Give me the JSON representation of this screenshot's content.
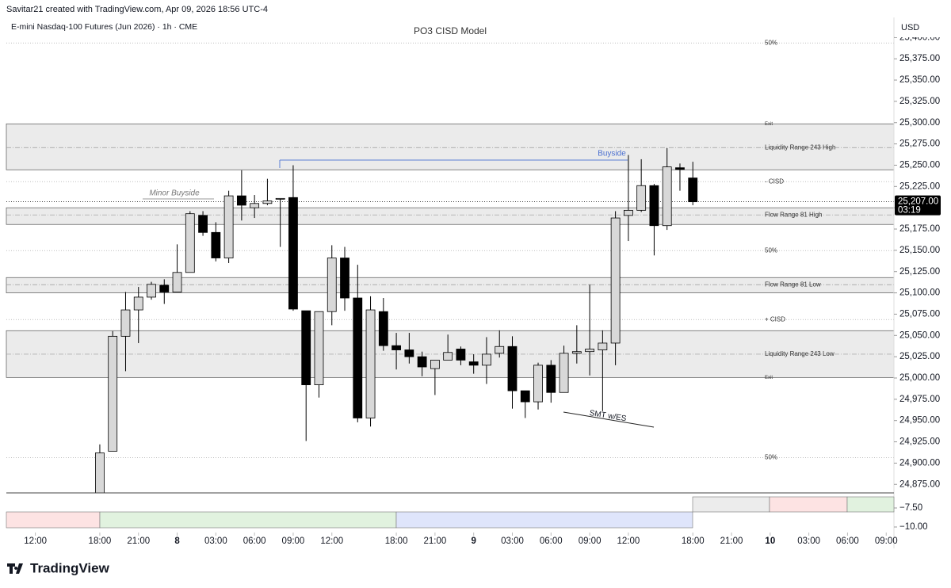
{
  "header": {
    "credit": "Savitar21 created with TradingView.com, Apr 09, 2026 18:56 UTC-4",
    "symbol": "E-mini Nasdaq-100 Futures (Jun 2026) · 1h · CME",
    "currency": "USD"
  },
  "chart_data": {
    "type": "candlestick",
    "title": "PO3 CISD Model",
    "candles": {
      "open": [
        24860,
        24914,
        25049,
        25080,
        25095,
        25109,
        25101,
        25124,
        25191,
        25171,
        25141,
        25214,
        25200,
        25205,
        25210,
        25212,
        25079,
        24992,
        25078,
        25141,
        25094,
        24953,
        25078,
        25038,
        25033,
        25025,
        25011,
        25021,
        25034,
        25019,
        25015,
        25029,
        25037,
        24985,
        24972,
        25015,
        24983,
        25029,
        25031,
        25033,
        25041,
        25191,
        25197,
        25226,
        25179,
        25247,
        25235
      ],
      "high": [
        24922,
        25055,
        25101,
        25107,
        25113,
        25116,
        25157,
        25196,
        25196,
        25183,
        25220,
        25244,
        25215,
        25234,
        25211,
        25250,
        25079,
        25078,
        25156,
        25154,
        25133,
        25096,
        25094,
        25053,
        25053,
        25031,
        25021,
        25051,
        25037,
        25028,
        25048,
        25056,
        25049,
        24985,
        25018,
        25021,
        25038,
        25062,
        25110,
        25056,
        25196,
        25262,
        25257,
        25228,
        25270,
        25252,
        25254
      ],
      "low": [
        24850,
        24914,
        25008,
        25041,
        25092,
        25087,
        25101,
        25124,
        25167,
        25137,
        25135,
        25185,
        25188,
        25203,
        25154,
        25079,
        24926,
        24977,
        25062,
        25079,
        24948,
        24943,
        25032,
        25010,
        25017,
        25002,
        24980,
        25021,
        25015,
        25005,
        24993,
        25024,
        24964,
        24953,
        24963,
        24971,
        24983,
        25017,
        25003,
        24961,
        25015,
        25161,
        25195,
        25144,
        25174,
        25220,
        25203
      ],
      "close": [
        24912,
        25049,
        25080,
        25095,
        25110,
        25101,
        25124,
        25193,
        25171,
        25141,
        25214,
        25203,
        25205,
        25208,
        25211,
        25081,
        24992,
        25078,
        25141,
        25094,
        24953,
        25080,
        25038,
        25033,
        25025,
        25013,
        25021,
        25030,
        25021,
        25015,
        25028,
        25037,
        24985,
        24972,
        25015,
        24983,
        25029,
        25031,
        25034,
        25041,
        25188,
        25197,
        25226,
        25179,
        25248,
        25245,
        25207
      ]
    },
    "xlim": [
      -7.25,
      61.6
    ],
    "xticks": [
      {
        "value": -5,
        "label": "12:00"
      },
      {
        "value": 0,
        "label": "18:00"
      },
      {
        "value": 3,
        "label": "21:00"
      },
      {
        "value": 6,
        "label": "8"
      },
      {
        "value": 9,
        "label": "03:00"
      },
      {
        "value": 12,
        "label": "06:00"
      },
      {
        "value": 15,
        "label": "09:00"
      },
      {
        "value": 18,
        "label": "12:00"
      },
      {
        "value": 23,
        "label": "18:00"
      },
      {
        "value": 26,
        "label": "21:00"
      },
      {
        "value": 29,
        "label": "9"
      },
      {
        "value": 32,
        "label": "03:00"
      },
      {
        "value": 35,
        "label": "06:00"
      },
      {
        "value": 38,
        "label": "09:00"
      },
      {
        "value": 41,
        "label": "12:00"
      },
      {
        "value": 46,
        "label": "18:00"
      },
      {
        "value": 49,
        "label": "21:00"
      },
      {
        "value": 52,
        "label": "10"
      },
      {
        "value": 55,
        "label": "03:00"
      },
      {
        "value": 58,
        "label": "06:00"
      },
      {
        "value": 61,
        "label": "09:00"
      }
    ],
    "ylim": [
      24865,
      25418
    ],
    "yticks": [
      {
        "value": 24875,
        "label": "24,875.00"
      },
      {
        "value": 24900,
        "label": "24,900.00"
      },
      {
        "value": 24925,
        "label": "24,925.00"
      },
      {
        "value": 24950,
        "label": "24,950.00"
      },
      {
        "value": 24975,
        "label": "24,975.00"
      },
      {
        "value": 25000,
        "label": "25,000.00"
      },
      {
        "value": 25025,
        "label": "25,025.00"
      },
      {
        "value": 25050,
        "label": "25,050.00"
      },
      {
        "value": 25075,
        "label": "25,075.00"
      },
      {
        "value": 25100,
        "label": "25,100.00"
      },
      {
        "value": 25125,
        "label": "25,125.00"
      },
      {
        "value": 25150,
        "label": "25,150.00"
      },
      {
        "value": 25175,
        "label": "25,175.00"
      },
      {
        "value": 25200,
        "label": "25,200.00"
      },
      {
        "value": 25225,
        "label": "25,225.00"
      },
      {
        "value": 25250,
        "label": "25,250.00"
      },
      {
        "value": 25275,
        "label": "25,275.00"
      },
      {
        "value": 25300,
        "label": "25,300.00"
      },
      {
        "value": 25325,
        "label": "25,325.00"
      },
      {
        "value": 25350,
        "label": "25,350.00"
      },
      {
        "value": 25375,
        "label": "25,375.00"
      },
      {
        "value": 25400,
        "label": "25,400.00"
      }
    ],
    "bands": [
      [
        25244.6,
        25298.6
      ],
      [
        25180.4,
        25200
      ],
      [
        25100,
        25118
      ],
      [
        25000.6,
        25055.6
      ]
    ],
    "levels": [
      {
        "value": 25393.6,
        "label": "50%",
        "style": "dotted"
      },
      {
        "value": 25298.6,
        "label": "Exit",
        "style": "none"
      },
      {
        "value": 25270.7,
        "label": "Liquidity Range 243 High",
        "style": "dashdot"
      },
      {
        "value": 25230.7,
        "label": "- CISD",
        "style": "dotted"
      },
      {
        "value": 25191.6,
        "label": "Flow Range 81 High",
        "style": "dashdot"
      },
      {
        "value": 25149.7,
        "label": "50%",
        "style": "dotted"
      },
      {
        "value": 25109.6,
        "label": "Flow Range 81 Low",
        "style": "dashdot"
      },
      {
        "value": 25068.7,
        "label": "+ CISD",
        "style": "dotted"
      },
      {
        "value": 25028,
        "label": "Liquidity Range 243 Low",
        "style": "dashdot"
      },
      {
        "value": 25000.6,
        "label": "Exit",
        "style": "none"
      },
      {
        "value": 24906.6,
        "label": "50%",
        "style": "dotted"
      }
    ],
    "last_price": {
      "value": 25207,
      "label": "25,207.00",
      "countdown": "03:19"
    },
    "annotations": [
      "Buyside",
      "Minor Buyside",
      "SMT w/ES"
    ],
    "indicator": {
      "ylim": [
        -10.73,
        -5.52
      ],
      "yticks": [
        {
          "value": -7.5,
          "label": "−7.50"
        },
        {
          "value": -10,
          "label": "−10.00"
        }
      ]
    }
  },
  "footer": {
    "brand": "TradingView"
  }
}
